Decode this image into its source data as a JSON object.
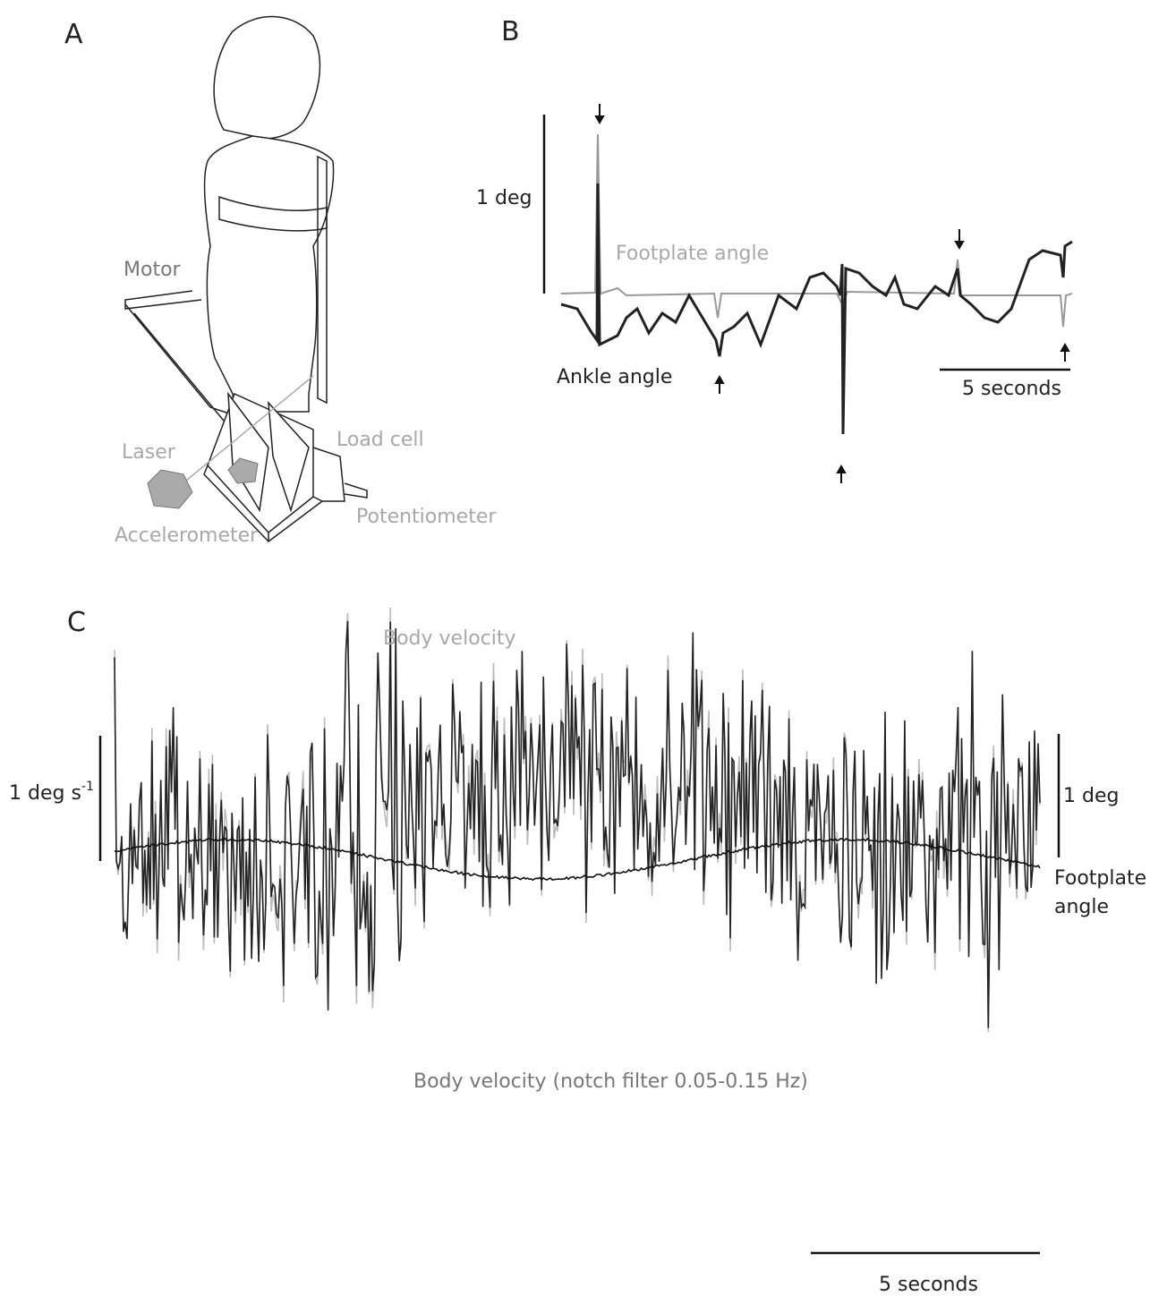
{
  "panels": [
    {
      "label": "A",
      "labels": [
        "Motor",
        "Laser",
        "Load cell",
        "Accelerometer",
        "Potentiometer"
      ]
    },
    {
      "label": "B",
      "scale_y": "1 deg",
      "scale_x": "5 seconds",
      "traces": [
        "Footplate angle",
        "Ankle angle"
      ]
    },
    {
      "label": "C",
      "scale_left": "1 deg s",
      "scale_left_sup": "-1",
      "scale_right": "1 deg",
      "traces": [
        "Body velocity",
        "Body velocity (notch filter 0.05-0.15 Hz)",
        "Footplate angle"
      ],
      "scale_x": "5 seconds"
    }
  ]
}
